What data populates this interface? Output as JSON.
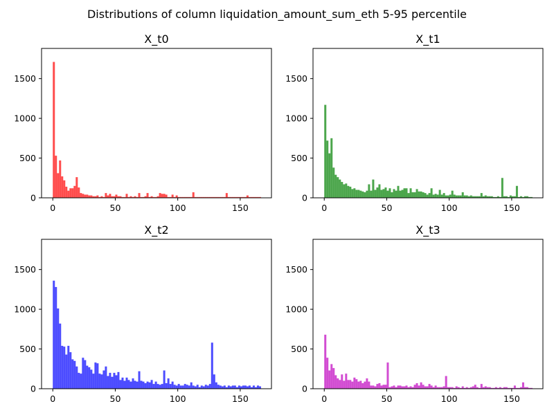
{
  "suptitle": "Distributions of column liquidation_amount_sum_eth 5-95 percentile",
  "chart_data": [
    {
      "type": "bar",
      "title": "X_t0",
      "color": "#ff0000",
      "bin_width": 1.6667,
      "xlim": [
        -9,
        175
      ],
      "ylim": [
        0,
        1880
      ],
      "xticks": [
        0,
        50,
        100,
        150
      ],
      "yticks": [
        0,
        500,
        1000,
        1500
      ],
      "values": [
        1710,
        530,
        310,
        470,
        270,
        220,
        140,
        90,
        120,
        120,
        150,
        260,
        130,
        60,
        50,
        40,
        40,
        30,
        30,
        20,
        20,
        30,
        10,
        20,
        10,
        60,
        30,
        50,
        20,
        20,
        40,
        20,
        20,
        10,
        10,
        50,
        10,
        20,
        10,
        20,
        10,
        60,
        10,
        10,
        20,
        60,
        10,
        20,
        10,
        10,
        20,
        60,
        50,
        50,
        40,
        10,
        10,
        40,
        10,
        30,
        10,
        10,
        10,
        10,
        10,
        10,
        10,
        70,
        10,
        10,
        10,
        10,
        10,
        10,
        10,
        10,
        10,
        10,
        10,
        10,
        10,
        10,
        10,
        60,
        10,
        10,
        10,
        10,
        10,
        10,
        10,
        10,
        10,
        30,
        10,
        10,
        10,
        10,
        10,
        10
      ]
    },
    {
      "type": "bar",
      "title": "X_t1",
      "color": "#008000",
      "bin_width": 1.6667,
      "xlim": [
        -9,
        175
      ],
      "ylim": [
        0,
        1880
      ],
      "xticks": [
        0,
        50,
        100,
        150
      ],
      "yticks": [
        0,
        500,
        1000,
        1500
      ],
      "values": [
        1170,
        720,
        560,
        750,
        380,
        290,
        260,
        230,
        200,
        170,
        180,
        150,
        140,
        110,
        120,
        100,
        100,
        90,
        80,
        70,
        90,
        170,
        90,
        230,
        100,
        130,
        170,
        100,
        110,
        130,
        90,
        120,
        70,
        110,
        90,
        150,
        90,
        100,
        120,
        120,
        60,
        120,
        70,
        70,
        110,
        80,
        80,
        70,
        60,
        40,
        60,
        120,
        40,
        50,
        40,
        100,
        40,
        60,
        30,
        30,
        40,
        90,
        40,
        30,
        30,
        30,
        70,
        30,
        30,
        20,
        30,
        20,
        20,
        20,
        20,
        60,
        20,
        30,
        20,
        20,
        20,
        10,
        10,
        20,
        10,
        250,
        20,
        20,
        10,
        30,
        20,
        20,
        150,
        10,
        20,
        10,
        20,
        20,
        10,
        10
      ]
    },
    {
      "type": "bar",
      "title": "X_t2",
      "color": "#0000ff",
      "bin_width": 1.6667,
      "xlim": [
        -9,
        175
      ],
      "ylim": [
        0,
        1880
      ],
      "xticks": [
        0,
        50,
        100,
        150
      ],
      "yticks": [
        0,
        500,
        1000,
        1500
      ],
      "values": [
        1360,
        1280,
        1010,
        820,
        540,
        530,
        430,
        540,
        460,
        370,
        350,
        280,
        200,
        190,
        390,
        360,
        290,
        270,
        240,
        190,
        330,
        320,
        190,
        180,
        230,
        280,
        160,
        200,
        150,
        200,
        170,
        210,
        110,
        140,
        100,
        140,
        110,
        90,
        130,
        100,
        90,
        220,
        100,
        90,
        70,
        90,
        80,
        110,
        60,
        90,
        60,
        50,
        60,
        230,
        70,
        130,
        60,
        90,
        50,
        40,
        60,
        40,
        40,
        60,
        50,
        40,
        80,
        40,
        30,
        50,
        20,
        40,
        30,
        50,
        40,
        60,
        580,
        180,
        80,
        50,
        40,
        30,
        40,
        20,
        40,
        30,
        40,
        40,
        20,
        40,
        30,
        40,
        40,
        30,
        40,
        20,
        40,
        20,
        40,
        30
      ]
    },
    {
      "type": "bar",
      "title": "X_t3",
      "color": "#bf00bf",
      "bin_width": 1.6667,
      "xlim": [
        -9,
        175
      ],
      "ylim": [
        0,
        1880
      ],
      "xticks": [
        0,
        50,
        100,
        150
      ],
      "yticks": [
        0,
        500,
        1000,
        1500
      ],
      "values": [
        680,
        390,
        230,
        310,
        260,
        170,
        130,
        110,
        180,
        100,
        190,
        110,
        110,
        90,
        140,
        120,
        90,
        100,
        70,
        90,
        130,
        90,
        40,
        40,
        30,
        60,
        70,
        40,
        50,
        50,
        330,
        20,
        30,
        40,
        20,
        40,
        40,
        30,
        30,
        40,
        20,
        30,
        20,
        50,
        70,
        40,
        80,
        50,
        30,
        30,
        60,
        40,
        20,
        40,
        20,
        20,
        20,
        30,
        160,
        20,
        20,
        20,
        10,
        30,
        20,
        10,
        30,
        10,
        20,
        10,
        20,
        30,
        50,
        20,
        10,
        60,
        20,
        30,
        20,
        20,
        10,
        10,
        20,
        10,
        20,
        10,
        20,
        20,
        10,
        10,
        10,
        40,
        10,
        10,
        20,
        80,
        20,
        20,
        10,
        10
      ]
    }
  ]
}
